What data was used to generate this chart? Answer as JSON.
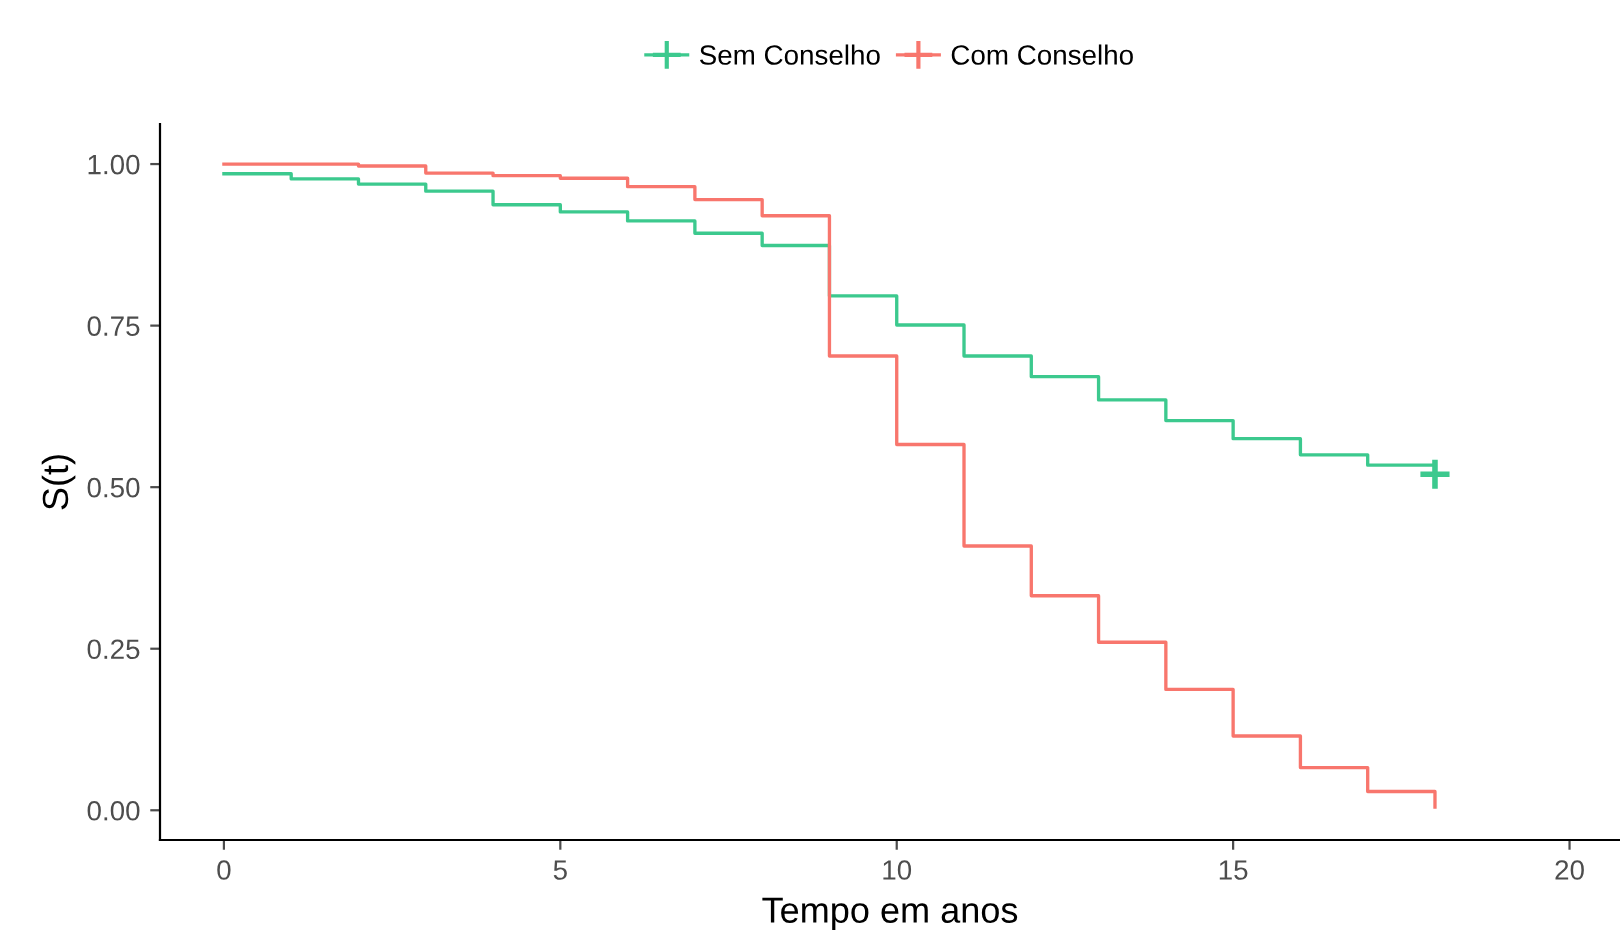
{
  "chart_data": {
    "type": "step",
    "xlabel": "Tempo em anos",
    "ylabel": "S(t)",
    "xlim": [
      -0.95,
      20.75
    ],
    "ylim": [
      -0.046,
      1.062
    ],
    "xticks": [
      0,
      5,
      10,
      15,
      20
    ],
    "yticks": [
      {
        "value": 0,
        "label": "0.00"
      },
      {
        "value": 0.25,
        "label": "0.25"
      },
      {
        "value": 0.5,
        "label": "0.50"
      },
      {
        "value": 0.75,
        "label": "0.75"
      },
      {
        "value": 1,
        "label": "1.00"
      }
    ],
    "grid": false,
    "legend": "top",
    "x": [
      0,
      1,
      2,
      3,
      4,
      5,
      6,
      7,
      8,
      9,
      10,
      11,
      12,
      13,
      14,
      15,
      16,
      17,
      18
    ],
    "series": [
      {
        "name": "Sem Conselho",
        "color": "#3cc98e",
        "values": [
          0.985,
          0.977,
          0.969,
          0.958,
          0.937,
          0.926,
          0.912,
          0.893,
          0.874,
          0.796,
          0.751,
          0.703,
          0.671,
          0.635,
          0.603,
          0.575,
          0.55,
          0.534,
          0.52
        ]
      },
      {
        "name": "Com Conselho",
        "color": "#f8766d",
        "values": [
          1.0,
          1.0,
          0.997,
          0.986,
          0.982,
          0.978,
          0.965,
          0.945,
          0.92,
          0.703,
          0.566,
          0.409,
          0.332,
          0.26,
          0.187,
          0.115,
          0.066,
          0.029,
          0.005
        ]
      },
      {
        "type": "scatter",
        "color": "#3cc98e",
        "marker": "cross",
        "x": [
          18
        ],
        "values": [
          0.52
        ]
      }
    ]
  }
}
